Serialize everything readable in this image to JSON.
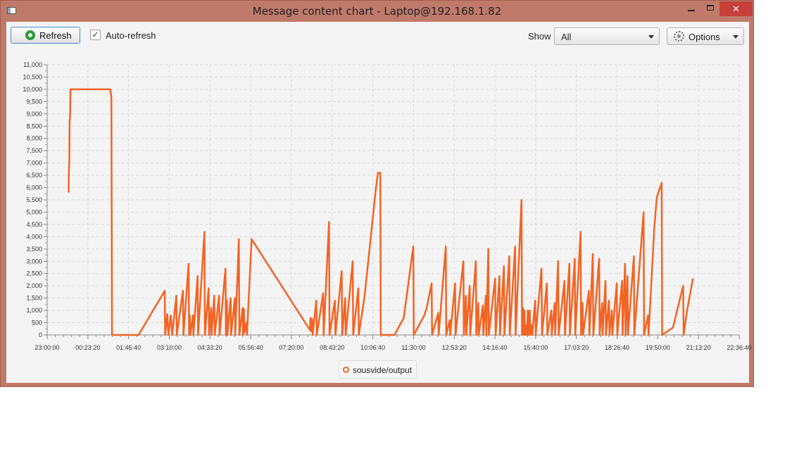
{
  "window": {
    "title": "Message content chart - Laptop@192.168.1.82",
    "close_glyph": "✕"
  },
  "toolbar": {
    "refresh_label": "Refresh",
    "autorefresh_label": "Auto-refresh",
    "autorefresh_checked": true,
    "autorefresh_mark": "✓",
    "show_label": "Show",
    "show_value": "All",
    "options_label": "Options"
  },
  "colors": {
    "series": "#f26424",
    "window_frame": "#c07a6a",
    "close_button": "#c7403a"
  },
  "icons": {
    "app": "app-window-icon",
    "refresh": "refresh-icon",
    "options": "gear-icon",
    "dropdown": "chevron-down-icon"
  },
  "chart_data": {
    "type": "line",
    "title": "",
    "xlabel": "",
    "ylabel": "",
    "grid": true,
    "legend_position": "bottom-center",
    "ylim": [
      0,
      11000
    ],
    "xlim": [
      "23:00:00",
      "22:36:40"
    ],
    "y_ticks": [
      "0",
      "500",
      "1,000",
      "1,500",
      "2,000",
      "2,500",
      "3,000",
      "3,500",
      "4,000",
      "4,500",
      "5,000",
      "5,500",
      "6,000",
      "6,500",
      "7,000",
      "7,500",
      "8,000",
      "8,500",
      "9,000",
      "9,500",
      "10,000",
      "10,500",
      "11,000"
    ],
    "x_ticks": [
      "23:00:00",
      "00:23:20",
      "01:46:40",
      "03:10:00",
      "04:33:20",
      "05:56:40",
      "07:20:00",
      "08:43:20",
      "10:06:40",
      "11:30:00",
      "12:53:20",
      "14:16:40",
      "15:40:00",
      "17:03:20",
      "18:26:40",
      "19:50:00",
      "21:13:20",
      "22:36:40"
    ],
    "series": [
      {
        "name": "sousvide/output",
        "points": [
          [
            "23:44:00",
            5800
          ],
          [
            "23:44:40",
            6900
          ],
          [
            "23:45:20",
            7000
          ],
          [
            "23:46:00",
            8700
          ],
          [
            "23:47:00",
            8900
          ],
          [
            "23:47:40",
            10000
          ],
          [
            "01:09:00",
            10000
          ],
          [
            "01:11:30",
            9700
          ],
          [
            "01:12:40",
            0
          ],
          [
            "02:07:00",
            0
          ],
          [
            "03:00:40",
            1800
          ],
          [
            "03:01:30",
            0
          ],
          [
            "03:06:00",
            850
          ],
          [
            "03:08:00",
            0
          ],
          [
            "03:13:00",
            800
          ],
          [
            "03:16:00",
            0
          ],
          [
            "03:24:30",
            1600
          ],
          [
            "03:25:20",
            0
          ],
          [
            "03:38:00",
            1800
          ],
          [
            "03:39:00",
            0
          ],
          [
            "03:49:30",
            2900
          ],
          [
            "03:50:30",
            0
          ],
          [
            "03:52:00",
            800
          ],
          [
            "03:53:00",
            0
          ],
          [
            "03:58:30",
            800
          ],
          [
            "03:59:20",
            0
          ],
          [
            "04:08:00",
            2400
          ],
          [
            "04:09:00",
            0
          ],
          [
            "04:22:00",
            4200
          ],
          [
            "04:23:00",
            0
          ],
          [
            "04:30:30",
            1900
          ],
          [
            "04:31:30",
            0
          ],
          [
            "04:35:30",
            1100
          ],
          [
            "04:36:30",
            0
          ],
          [
            "04:42:00",
            1600
          ],
          [
            "04:43:00",
            0
          ],
          [
            "04:52:00",
            1600
          ],
          [
            "04:53:00",
            0
          ],
          [
            "05:05:00",
            2700
          ],
          [
            "05:06:00",
            0
          ],
          [
            "05:08:00",
            1400
          ],
          [
            "05:09:00",
            0
          ],
          [
            "05:15:30",
            1500
          ],
          [
            "05:16:30",
            0
          ],
          [
            "05:24:00",
            1500
          ],
          [
            "05:25:00",
            0
          ],
          [
            "05:32:30",
            3900
          ],
          [
            "05:33:30",
            0
          ],
          [
            "05:40:00",
            1100
          ],
          [
            "05:41:00",
            0
          ],
          [
            "05:43:00",
            1050
          ],
          [
            "05:44:00",
            100
          ],
          [
            "05:48:00",
            500
          ],
          [
            "05:49:00",
            0
          ],
          [
            "05:58:30",
            3900
          ],
          [
            "07:58:00",
            200
          ],
          [
            "07:59:00",
            700
          ],
          [
            "08:00:00",
            150
          ],
          [
            "08:02:30",
            650
          ],
          [
            "08:03:30",
            0
          ],
          [
            "08:11:00",
            1400
          ],
          [
            "08:12:00",
            0
          ],
          [
            "08:25:00",
            1700
          ],
          [
            "08:26:00",
            0
          ],
          [
            "08:37:00",
            4600
          ],
          [
            "08:38:00",
            0
          ],
          [
            "08:49:00",
            1400
          ],
          [
            "08:50:00",
            0
          ],
          [
            "09:03:00",
            2600
          ],
          [
            "09:04:00",
            0
          ],
          [
            "09:10:00",
            1500
          ],
          [
            "09:11:00",
            0
          ],
          [
            "09:25:30",
            3000
          ],
          [
            "09:26:30",
            0
          ],
          [
            "09:37:00",
            1900
          ],
          [
            "09:38:00",
            0
          ],
          [
            "09:50:00",
            1600
          ],
          [
            "10:12:00",
            5800
          ],
          [
            "10:17:00",
            6600
          ],
          [
            "10:22:00",
            6600
          ],
          [
            "10:23:00",
            0
          ],
          [
            "10:51:00",
            0
          ],
          [
            "11:10:00",
            700
          ],
          [
            "11:29:30",
            3600
          ],
          [
            "11:30:30",
            0
          ],
          [
            "11:52:00",
            800
          ],
          [
            "11:57:00",
            1100
          ],
          [
            "12:07:00",
            2100
          ],
          [
            "12:08:00",
            0
          ],
          [
            "12:20:30",
            900
          ],
          [
            "12:21:30",
            0
          ],
          [
            "12:36:00",
            3600
          ],
          [
            "12:37:00",
            0
          ],
          [
            "12:44:00",
            600
          ],
          [
            "12:45:00",
            0
          ],
          [
            "12:55:00",
            2100
          ],
          [
            "12:56:00",
            0
          ],
          [
            "13:12:00",
            3000
          ],
          [
            "13:13:00",
            0
          ],
          [
            "13:17:00",
            1600
          ],
          [
            "13:18:00",
            0
          ],
          [
            "13:25:00",
            2000
          ],
          [
            "13:26:00",
            0
          ],
          [
            "13:37:30",
            3000
          ],
          [
            "13:38:30",
            0
          ],
          [
            "13:42:30",
            1300
          ],
          [
            "13:43:30",
            0
          ],
          [
            "13:52:00",
            1200
          ],
          [
            "13:53:00",
            0
          ],
          [
            "13:58:00",
            1600
          ],
          [
            "13:59:00",
            0
          ],
          [
            "14:03:00",
            3500
          ],
          [
            "14:04:00",
            0
          ],
          [
            "14:17:00",
            2300
          ],
          [
            "14:18:00",
            0
          ],
          [
            "14:26:00",
            2400
          ],
          [
            "14:27:00",
            0
          ],
          [
            "14:35:00",
            2800
          ],
          [
            "14:36:00",
            0
          ],
          [
            "14:46:00",
            3200
          ],
          [
            "14:47:00",
            0
          ],
          [
            "14:58:00",
            3600
          ],
          [
            "14:59:00",
            0
          ],
          [
            "15:11:00",
            5500
          ],
          [
            "15:12:00",
            0
          ],
          [
            "15:14:00",
            1100
          ],
          [
            "15:15:00",
            0
          ],
          [
            "15:17:00",
            1000
          ],
          [
            "15:18:00",
            0
          ],
          [
            "15:21:00",
            400
          ],
          [
            "15:22:00",
            0
          ],
          [
            "15:24:00",
            1000
          ],
          [
            "15:25:00",
            0
          ],
          [
            "15:28:00",
            1000
          ],
          [
            "15:29:00",
            0
          ],
          [
            "15:32:00",
            400
          ],
          [
            "15:33:00",
            0
          ],
          [
            "15:39:00",
            1400
          ],
          [
            "15:40:00",
            0
          ],
          [
            "15:52:00",
            2700
          ],
          [
            "15:53:00",
            0
          ],
          [
            "16:03:00",
            2100
          ],
          [
            "16:04:00",
            0
          ],
          [
            "16:12:00",
            1000
          ],
          [
            "16:13:00",
            0
          ],
          [
            "16:19:00",
            1300
          ],
          [
            "16:20:00",
            0
          ],
          [
            "16:26:00",
            3000
          ],
          [
            "16:27:00",
            0
          ],
          [
            "16:39:00",
            2200
          ],
          [
            "16:40:00",
            0
          ],
          [
            "16:49:00",
            2900
          ],
          [
            "16:50:00",
            0
          ],
          [
            "17:00:00",
            3100
          ],
          [
            "17:01:00",
            0
          ],
          [
            "17:12:00",
            4200
          ],
          [
            "17:13:00",
            0
          ],
          [
            "17:16:00",
            1300
          ],
          [
            "17:17:00",
            0
          ],
          [
            "17:29:00",
            1800
          ],
          [
            "17:30:00",
            0
          ],
          [
            "17:37:00",
            3300
          ],
          [
            "17:38:00",
            0
          ],
          [
            "17:50:00",
            3100
          ],
          [
            "17:51:00",
            0
          ],
          [
            "17:56:00",
            1300
          ],
          [
            "17:57:00",
            0
          ],
          [
            "18:03:00",
            2200
          ],
          [
            "18:04:00",
            0
          ],
          [
            "18:10:00",
            1400
          ],
          [
            "18:11:00",
            0
          ],
          [
            "18:16:00",
            1000
          ],
          [
            "18:17:00",
            0
          ],
          [
            "18:26:00",
            2100
          ],
          [
            "18:27:00",
            0
          ],
          [
            "18:37:00",
            2200
          ],
          [
            "18:38:00",
            0
          ],
          [
            "18:43:00",
            2900
          ],
          [
            "18:44:00",
            0
          ],
          [
            "18:48:00",
            2400
          ],
          [
            "18:49:00",
            0
          ],
          [
            "19:01:00",
            3200
          ],
          [
            "19:02:00",
            0
          ],
          [
            "19:21:00",
            5000
          ],
          [
            "19:22:00",
            0
          ],
          [
            "19:30:00",
            800
          ],
          [
            "19:31:00",
            0
          ],
          [
            "19:43:00",
            4400
          ],
          [
            "19:48:00",
            5600
          ],
          [
            "19:58:00",
            6200
          ],
          [
            "19:59:00",
            0
          ],
          [
            "20:21:00",
            300
          ],
          [
            "20:42:00",
            2000
          ],
          [
            "20:43:00",
            0
          ],
          [
            "20:50:00",
            1000
          ],
          [
            "21:02:00",
            2300
          ]
        ]
      }
    ]
  }
}
